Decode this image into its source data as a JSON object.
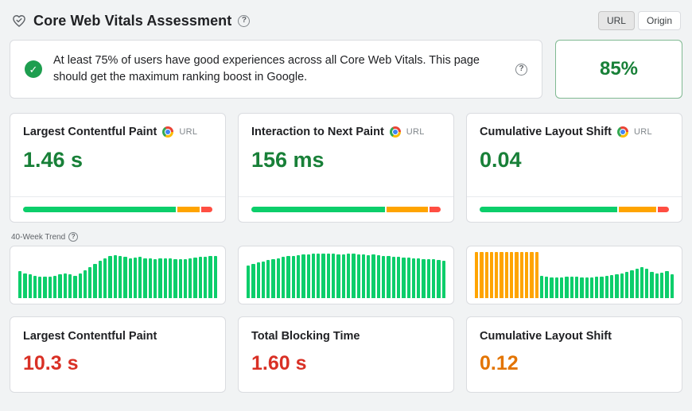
{
  "colors": {
    "good": "#0cce6b",
    "needs_improvement": "#ffa400",
    "poor": "#ff4e42",
    "good_text": "#188038",
    "poor_text": "#d93025",
    "warn_text": "#e37400"
  },
  "icons": {
    "heart_check": "heart-with-check",
    "help": "?",
    "check": "✓",
    "chrome": "chrome-logo"
  },
  "header": {
    "title": "Core Web Vitals Assessment",
    "toggle": {
      "options": [
        "URL",
        "Origin"
      ],
      "selected": "URL"
    }
  },
  "assessment": {
    "message": "At least 75% of users have good experiences across all Core Web Vitals. This page should get the maximum ranking boost in Google.",
    "score": "85%"
  },
  "field_metrics": [
    {
      "name": "Largest Contentful Paint",
      "scope": "URL",
      "value": "1.46 s",
      "status": "good",
      "distribution": {
        "good": 82,
        "needs_improvement": 12,
        "poor": 6
      }
    },
    {
      "name": "Interaction to Next Paint",
      "scope": "URL",
      "value": "156 ms",
      "status": "good",
      "distribution": {
        "good": 72,
        "needs_improvement": 22,
        "poor": 6
      }
    },
    {
      "name": "Cumulative Layout Shift",
      "scope": "URL",
      "value": "0.04",
      "status": "good",
      "distribution": {
        "good": 74,
        "needs_improvement": 20,
        "poor": 6
      }
    }
  ],
  "trend": {
    "label": "40-Week Trend"
  },
  "chart_data": [
    {
      "type": "bar",
      "name": "lcp-40-week-trend",
      "units": "relative-height-percent",
      "ylim": [
        0,
        100
      ],
      "orange_count": 0,
      "values": [
        58,
        54,
        51,
        49,
        47,
        46,
        47,
        49,
        51,
        53,
        51,
        49,
        53,
        60,
        67,
        74,
        81,
        87,
        91,
        93,
        91,
        89,
        87,
        88,
        89,
        87,
        86,
        85,
        86,
        87,
        86,
        85,
        84,
        85,
        87,
        88,
        89,
        90,
        91,
        92
      ]
    },
    {
      "type": "bar",
      "name": "inp-40-week-trend",
      "units": "relative-height-percent",
      "ylim": [
        0,
        100
      ],
      "orange_count": 0,
      "values": [
        70,
        74,
        77,
        80,
        83,
        85,
        87,
        89,
        91,
        92,
        93,
        94,
        95,
        96,
        96,
        97,
        96,
        96,
        95,
        95,
        96,
        96,
        95,
        94,
        93,
        94,
        93,
        92,
        91,
        90,
        89,
        88,
        88,
        87,
        86,
        85,
        84,
        84,
        83,
        81
      ]
    },
    {
      "type": "bar",
      "name": "cls-40-week-trend",
      "units": "relative-height-percent",
      "ylim": [
        0,
        100
      ],
      "orange_count": 13,
      "values": [
        100,
        100,
        100,
        100,
        100,
        100,
        100,
        100,
        100,
        100,
        100,
        100,
        100,
        48,
        46,
        45,
        44,
        45,
        46,
        47,
        46,
        45,
        44,
        45,
        46,
        47,
        48,
        50,
        52,
        54,
        57,
        60,
        64,
        68,
        63,
        57,
        53,
        55,
        58,
        52
      ]
    }
  ],
  "lab_metrics": [
    {
      "name": "Largest Contentful Paint",
      "value": "10.3 s",
      "status": "poor"
    },
    {
      "name": "Total Blocking Time",
      "value": "1.60 s",
      "status": "poor"
    },
    {
      "name": "Cumulative Layout Shift",
      "value": "0.12",
      "status": "warn"
    }
  ]
}
